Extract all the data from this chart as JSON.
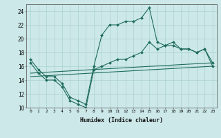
{
  "xlabel": "Humidex (Indice chaleur)",
  "bg_color": "#cce8e8",
  "line_color": "#1e6b5e",
  "grid_color": "#b0d4d4",
  "xlim": [
    -0.5,
    23.5
  ],
  "ylim": [
    10,
    25
  ],
  "xticks": [
    0,
    1,
    2,
    3,
    4,
    5,
    6,
    7,
    8,
    9,
    10,
    11,
    12,
    13,
    14,
    15,
    16,
    17,
    18,
    19,
    20,
    21,
    22,
    23
  ],
  "yticks": [
    10,
    12,
    14,
    16,
    18,
    20,
    22,
    24
  ],
  "line1_x": [
    0,
    1,
    2,
    3,
    4,
    5,
    6,
    7,
    8,
    9,
    10,
    11,
    12,
    13,
    14,
    15,
    16,
    17,
    18,
    19,
    20,
    21,
    22,
    23
  ],
  "line1_y": [
    17,
    15.5,
    14.5,
    14.5,
    13.5,
    11.5,
    11.0,
    10.5,
    16.0,
    20.5,
    22.0,
    22.0,
    22.5,
    22.5,
    23.0,
    24.5,
    19.5,
    19.0,
    19.5,
    18.5,
    18.5,
    18.0,
    18.5,
    16.5
  ],
  "line2_x": [
    0,
    1,
    2,
    3,
    4,
    5,
    6,
    7,
    8,
    9,
    10,
    11,
    12,
    13,
    14,
    15,
    16,
    17,
    18,
    19,
    20,
    21,
    22,
    23
  ],
  "line2_y": [
    16.5,
    15.0,
    14.0,
    14.0,
    13.0,
    11.0,
    10.5,
    10.0,
    15.5,
    16.0,
    16.5,
    17.0,
    17.0,
    17.5,
    18.0,
    19.5,
    18.5,
    19.0,
    19.0,
    18.5,
    18.5,
    18.0,
    18.5,
    16.0
  ],
  "line3_x": [
    0,
    23
  ],
  "line3_y": [
    15.0,
    16.5
  ],
  "line4_x": [
    0,
    23
  ],
  "line4_y": [
    14.5,
    16.0
  ]
}
